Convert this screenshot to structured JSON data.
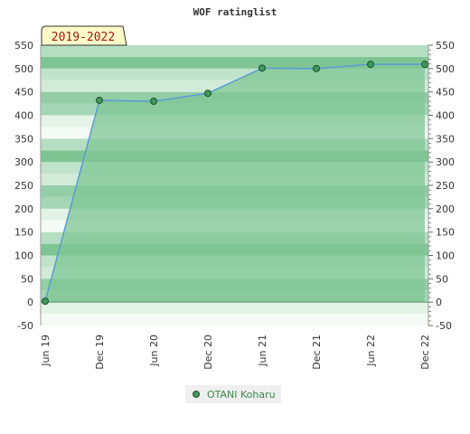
{
  "chart_data": {
    "type": "area",
    "title": "WOF ratinglist",
    "range_badge": "2019-2022",
    "categories": [
      "Jun 19",
      "Dec 19",
      "Jun 20",
      "Dec 20",
      "Jun 21",
      "Dec 21",
      "Jun 22",
      "Dec 22"
    ],
    "series": [
      {
        "name": "OTANI Koharu",
        "values": [
          2,
          432,
          430,
          447,
          501,
          500,
          509,
          509
        ]
      }
    ],
    "ylim": [
      -50,
      550
    ],
    "yticks": [
      -50,
      0,
      50,
      100,
      150,
      200,
      250,
      300,
      350,
      400,
      450,
      500,
      550
    ],
    "xlabel": "",
    "ylabel": "",
    "grid": true,
    "legend_position": "bottom",
    "colors": {
      "line": "#5b9bd5",
      "fill": "#7fc594",
      "marker": "#3f9a5a",
      "marker_edge": "#1f4f2a",
      "badge_bg": "#fffbc8",
      "badge_text": "#a11a1a"
    }
  }
}
